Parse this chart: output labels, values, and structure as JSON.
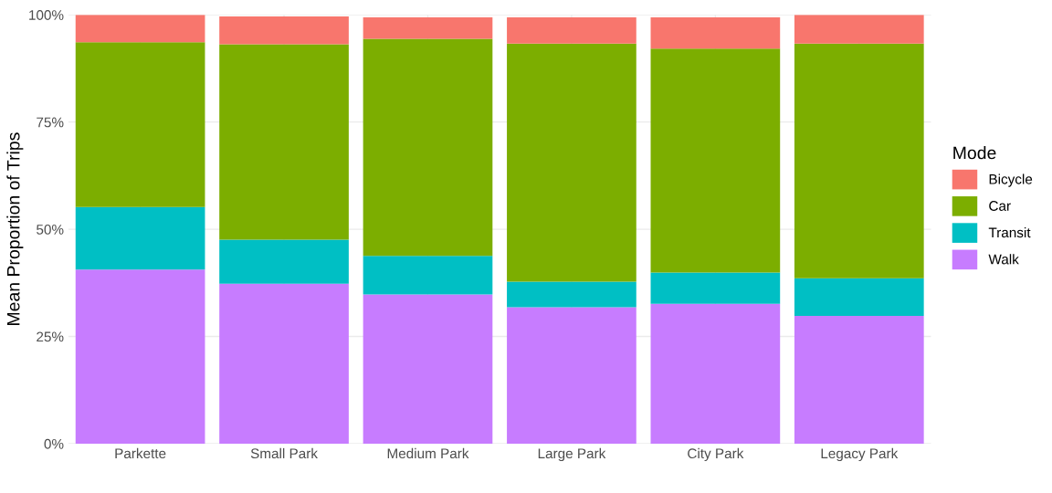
{
  "chart_data": {
    "type": "bar",
    "stacked": true,
    "ylabel": "Mean Proportion of Trips",
    "legend_title": "Mode",
    "legend": "right",
    "categories": [
      "Parkette",
      "Small Park",
      "Medium Park",
      "Large Park",
      "City Park",
      "Legacy Park"
    ],
    "series": [
      {
        "name": "Walk",
        "color": "#c77cff",
        "values": [
          0.406,
          0.373,
          0.348,
          0.318,
          0.326,
          0.298
        ]
      },
      {
        "name": "Transit",
        "color": "#00bfc4",
        "values": [
          0.146,
          0.103,
          0.09,
          0.06,
          0.073,
          0.088
        ]
      },
      {
        "name": "Car",
        "color": "#7cae00",
        "values": [
          0.384,
          0.455,
          0.506,
          0.555,
          0.522,
          0.547
        ]
      },
      {
        "name": "Bicycle",
        "color": "#f8766d",
        "values": [
          0.064,
          0.065,
          0.05,
          0.061,
          0.073,
          0.067
        ]
      }
    ],
    "ylim": [
      0,
      1.0
    ],
    "yticks": [
      {
        "value": 0,
        "label": "0%"
      },
      {
        "value": 0.25,
        "label": "25%"
      },
      {
        "value": 0.5,
        "label": "50%"
      },
      {
        "value": 0.75,
        "label": "75%"
      },
      {
        "value": 1.0,
        "label": "100%"
      }
    ],
    "grid": true
  }
}
